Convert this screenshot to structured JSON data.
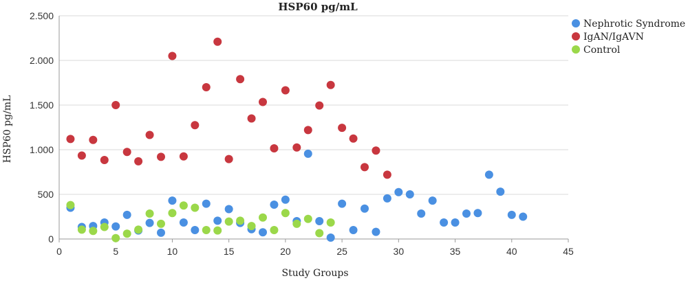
{
  "chart_data": {
    "type": "scatter",
    "title": "HSP60 pg/mL",
    "xlabel": "Study Groups",
    "ylabel": "HSP60 pg/mL",
    "xlim": [
      0,
      45
    ],
    "ylim": [
      0,
      2500
    ],
    "xticks": [
      0,
      5,
      10,
      15,
      20,
      25,
      30,
      35,
      40,
      45
    ],
    "yticks": [
      0,
      500,
      1000,
      1500,
      2000,
      2500
    ],
    "ytick_labels": [
      "0",
      "500",
      "1.000",
      "1.500",
      "2.000",
      "2.500"
    ],
    "grid": "horizontal",
    "legend_position": "top-right",
    "series": [
      {
        "name": "Nephrotic Syndrome",
        "color": "#4a90e2",
        "points": [
          [
            1,
            350
          ],
          [
            2,
            135
          ],
          [
            3,
            145
          ],
          [
            4,
            185
          ],
          [
            5,
            140
          ],
          [
            6,
            270
          ],
          [
            7,
            95
          ],
          [
            8,
            180
          ],
          [
            9,
            70
          ],
          [
            10,
            430
          ],
          [
            11,
            185
          ],
          [
            12,
            100
          ],
          [
            13,
            395
          ],
          [
            14,
            205
          ],
          [
            15,
            335
          ],
          [
            16,
            180
          ],
          [
            17,
            110
          ],
          [
            18,
            75
          ],
          [
            19,
            385
          ],
          [
            20,
            440
          ],
          [
            21,
            200
          ],
          [
            22,
            955
          ],
          [
            23,
            200
          ],
          [
            24,
            15
          ],
          [
            25,
            395
          ],
          [
            26,
            100
          ],
          [
            27,
            340
          ],
          [
            28,
            80
          ],
          [
            29,
            455
          ],
          [
            30,
            525
          ],
          [
            31,
            500
          ],
          [
            32,
            285
          ],
          [
            33,
            430
          ],
          [
            34,
            185
          ],
          [
            35,
            185
          ],
          [
            36,
            285
          ],
          [
            37,
            290
          ],
          [
            38,
            720
          ],
          [
            39,
            530
          ],
          [
            40,
            270
          ],
          [
            41,
            250
          ]
        ]
      },
      {
        "name": "IgAN/IgAVN",
        "color": "#c8373f",
        "points": [
          [
            1,
            1120
          ],
          [
            2,
            935
          ],
          [
            3,
            1110
          ],
          [
            4,
            885
          ],
          [
            5,
            1500
          ],
          [
            6,
            975
          ],
          [
            7,
            870
          ],
          [
            8,
            1165
          ],
          [
            9,
            920
          ],
          [
            10,
            2050
          ],
          [
            11,
            925
          ],
          [
            12,
            1275
          ],
          [
            13,
            1700
          ],
          [
            14,
            2210
          ],
          [
            15,
            895
          ],
          [
            16,
            1790
          ],
          [
            17,
            1350
          ],
          [
            18,
            1535
          ],
          [
            19,
            1015
          ],
          [
            20,
            1665
          ],
          [
            21,
            1025
          ],
          [
            22,
            1220
          ],
          [
            23,
            1495
          ],
          [
            24,
            1725
          ],
          [
            25,
            1245
          ],
          [
            26,
            1125
          ],
          [
            27,
            805
          ],
          [
            28,
            990
          ],
          [
            29,
            720
          ]
        ]
      },
      {
        "name": "Control",
        "color": "#9bd84a",
        "points": [
          [
            1,
            380
          ],
          [
            2,
            105
          ],
          [
            3,
            90
          ],
          [
            4,
            135
          ],
          [
            5,
            10
          ],
          [
            6,
            60
          ],
          [
            7,
            105
          ],
          [
            8,
            285
          ],
          [
            9,
            170
          ],
          [
            10,
            290
          ],
          [
            11,
            375
          ],
          [
            12,
            350
          ],
          [
            13,
            100
          ],
          [
            14,
            95
          ],
          [
            15,
            195
          ],
          [
            16,
            205
          ],
          [
            17,
            145
          ],
          [
            18,
            240
          ],
          [
            19,
            100
          ],
          [
            20,
            290
          ],
          [
            21,
            170
          ],
          [
            22,
            225
          ],
          [
            23,
            65
          ],
          [
            24,
            185
          ]
        ]
      }
    ]
  }
}
